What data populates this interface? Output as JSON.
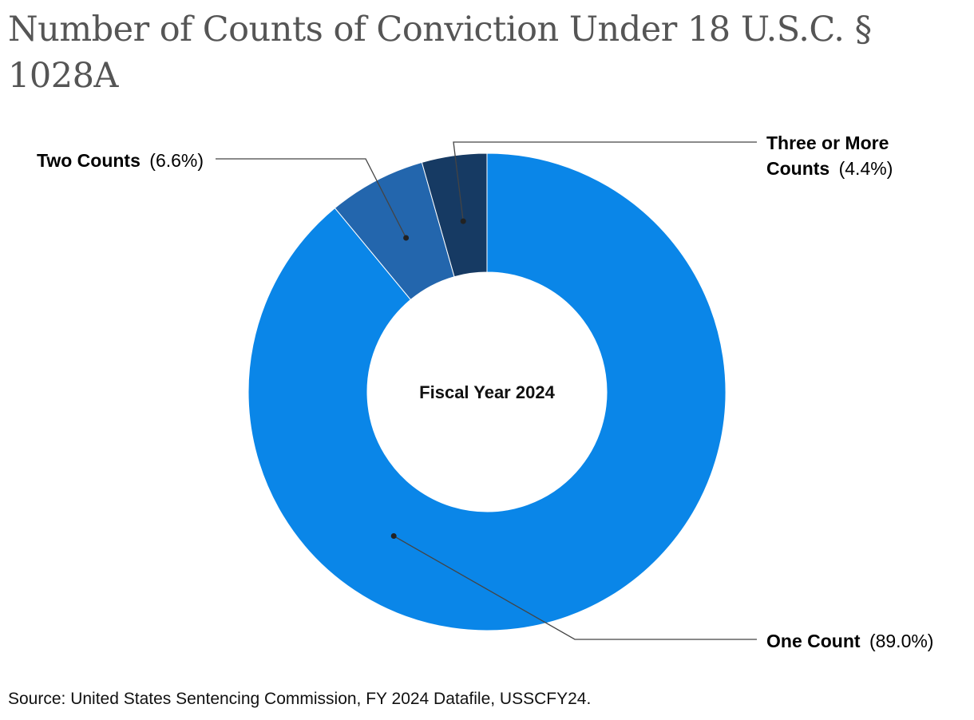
{
  "chart_data": {
    "type": "pie",
    "variant": "donut",
    "title": "Number of Counts of Conviction Under 18 U.S.C. § 1028A",
    "center_label": "Fiscal Year 2024",
    "slices": [
      {
        "name": "One Count",
        "value": 89.0,
        "display": "(89.0%)",
        "color": "#0a86e8"
      },
      {
        "name": "Two Counts",
        "value": 6.6,
        "display": "(6.6%)",
        "color": "#2366ad"
      },
      {
        "name": "Three or More Counts",
        "name_lines": [
          "Three or More",
          "Counts"
        ],
        "value": 4.4,
        "display": "(4.4%)",
        "color": "#163a63"
      }
    ],
    "source": "Source: United States Sentencing Commission, FY 2024 Datafile, USSCFY24."
  }
}
